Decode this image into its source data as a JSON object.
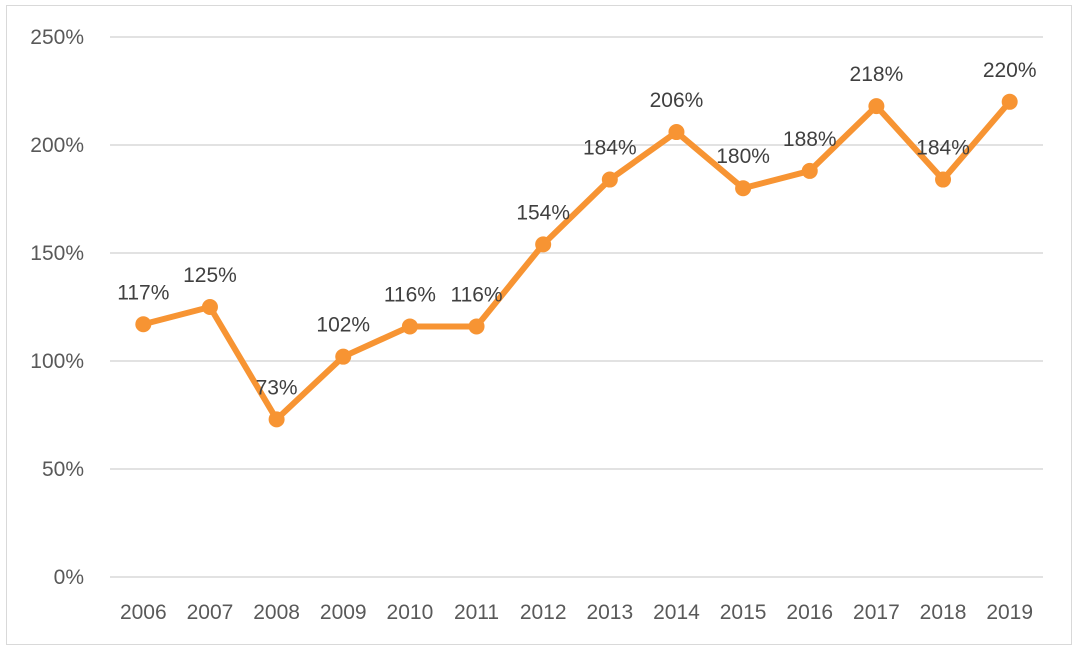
{
  "chart_data": {
    "type": "line",
    "title": "",
    "xlabel": "",
    "ylabel": "",
    "categories": [
      "2006",
      "2007",
      "2008",
      "2009",
      "2010",
      "2011",
      "2012",
      "2013",
      "2014",
      "2015",
      "2016",
      "2017",
      "2018",
      "2019"
    ],
    "series": [
      {
        "values": [
          117,
          125,
          73,
          102,
          116,
          116,
          154,
          184,
          206,
          180,
          188,
          218,
          184,
          220
        ],
        "labels": [
          "117%",
          "125%",
          "73%",
          "102%",
          "116%",
          "116%",
          "154%",
          "184%",
          "206%",
          "180%",
          "188%",
          "218%",
          "184%",
          "220%"
        ],
        "color": "#f79433"
      }
    ],
    "ylim": [
      0,
      250
    ],
    "yticks": [
      0,
      50,
      100,
      150,
      200,
      250
    ],
    "ytick_labels": [
      "0%",
      "50%",
      "100%",
      "150%",
      "200%",
      "250%"
    ],
    "grid": true,
    "legend": "none",
    "gridline_color": "#d9d9d9"
  }
}
